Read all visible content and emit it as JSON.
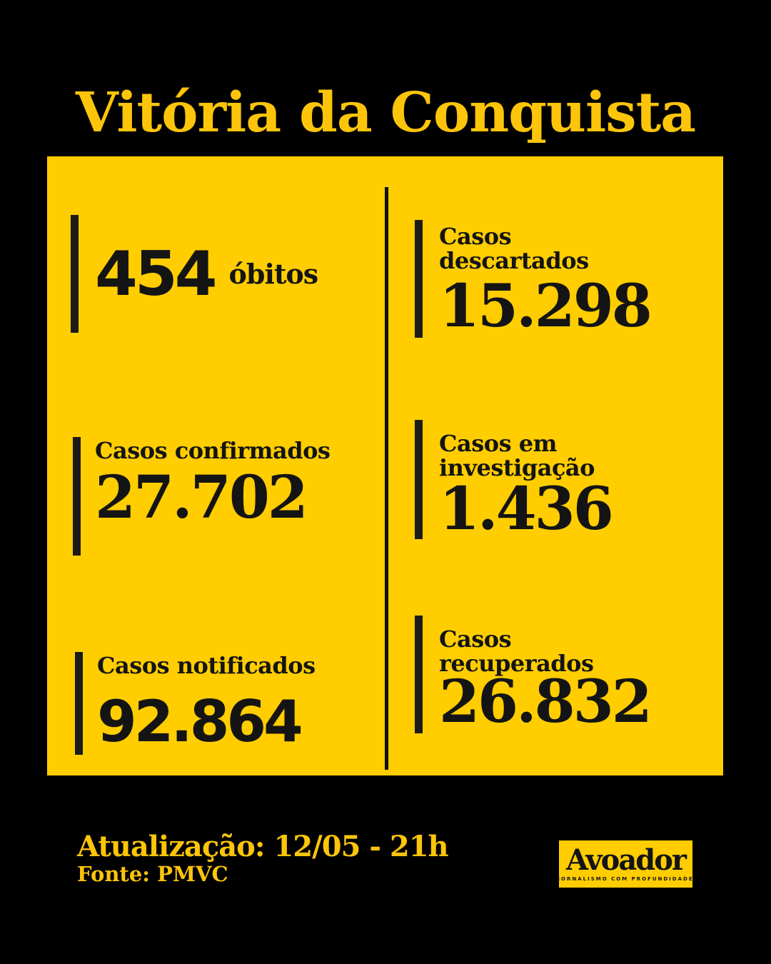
{
  "title": "Vitória da Conquista",
  "colors": {
    "background": "#000000",
    "card_yellow": "#FFCD00",
    "accent_gold": "#FCC50A",
    "ink": "#141414"
  },
  "stats": {
    "left": [
      {
        "value": "454",
        "label": "óbitos"
      },
      {
        "label": "Casos confirmados",
        "value": "27.702"
      },
      {
        "label": "Casos notificados",
        "value": "92.864"
      }
    ],
    "right": [
      {
        "label_line1": "Casos",
        "label_line2": "descartados",
        "value": "15.298"
      },
      {
        "label_line1": "Casos em",
        "label_line2": "investigação",
        "value": "1.436"
      },
      {
        "label_line1": "Casos",
        "label_line2": "recuperados",
        "value": "26.832"
      }
    ]
  },
  "footer": {
    "updated": "Atualização: 12/05 - 21h",
    "source": "Fonte: PMVC"
  },
  "logo": {
    "wordmark": "Avoador",
    "tagline": "JORNALISMO COM PROFUNDIDADE"
  },
  "chart_data": {
    "type": "table",
    "title": "Vitória da Conquista",
    "categories": [
      "Óbitos",
      "Casos confirmados",
      "Casos notificados",
      "Casos descartados",
      "Casos em investigação",
      "Casos recuperados"
    ],
    "values": [
      454,
      27702,
      92864,
      15298,
      1436,
      26832
    ],
    "source": "PMVC",
    "updated": "12/05 - 21h"
  }
}
